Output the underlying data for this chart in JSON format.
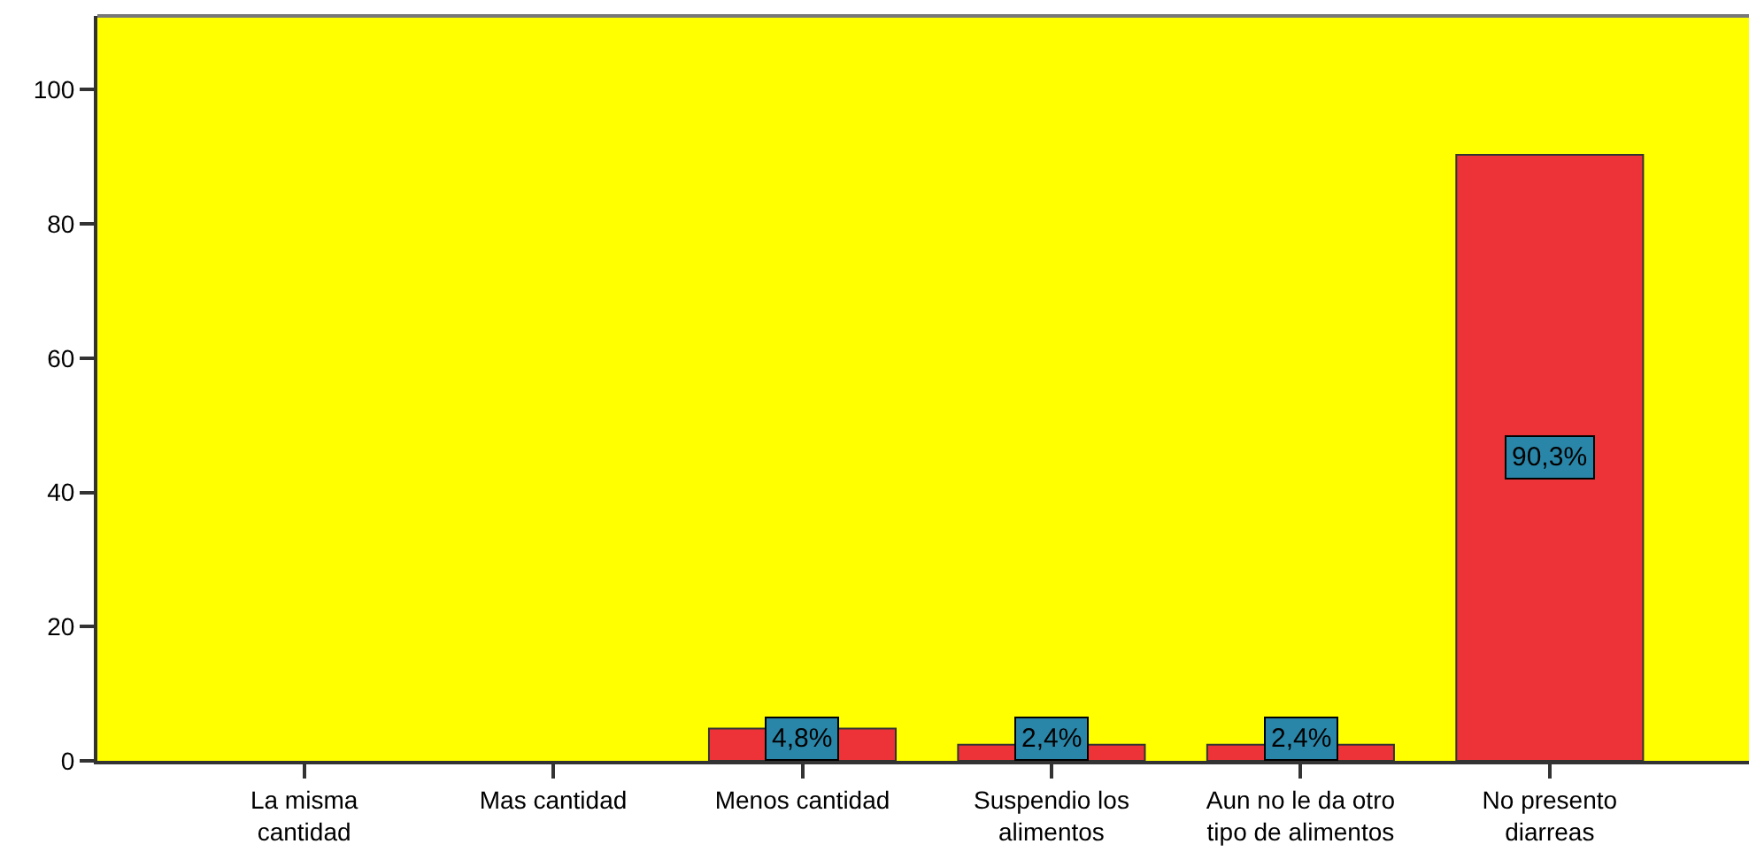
{
  "chart_data": {
    "type": "bar",
    "categories": [
      "La misma cantidad",
      "Mas cantidad",
      "Menos cantidad",
      "Suspendio los alimentos",
      "Aun no le da otro tipo de alimentos",
      "No presento diarreas"
    ],
    "values": [
      0,
      0,
      4.8,
      2.4,
      2.4,
      90.3
    ],
    "value_labels": [
      null,
      null,
      "4,8%",
      "2,4%",
      "2,4%",
      "90,3%"
    ],
    "color": "#ee3338",
    "ylim": [
      0,
      111
    ],
    "yticks": [
      0,
      20,
      40,
      60,
      80,
      100
    ],
    "grid": false
  }
}
